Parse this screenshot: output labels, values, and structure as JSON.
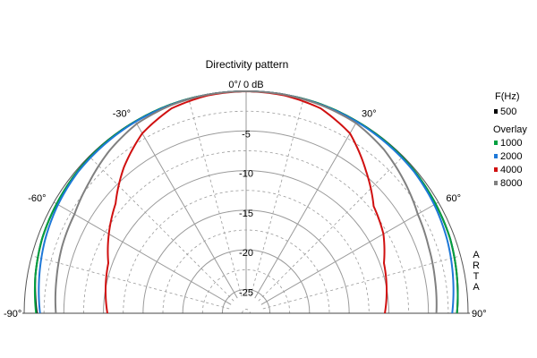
{
  "chart_data": {
    "type": "polar-half",
    "title": "Directivity pattern",
    "radial_unit_label": "0°/ 0 dB",
    "radial_labels": [
      "-5",
      "-10",
      "-15",
      "-20",
      "-25"
    ],
    "db_range": [
      -28,
      0
    ],
    "angle_range": [
      -90,
      90
    ],
    "angle_labels": [
      {
        "angle": -90,
        "text": "-90°"
      },
      {
        "angle": -60,
        "text": "-60°"
      },
      {
        "angle": -30,
        "text": "-30°"
      },
      {
        "angle": 30,
        "text": "30°"
      },
      {
        "angle": 60,
        "text": "60°"
      },
      {
        "angle": 90,
        "text": "90°"
      }
    ],
    "legend_title": "F(Hz)",
    "overlay_label": "Overlay",
    "watermark": "ARTA",
    "angles": [
      -90,
      -80,
      -70,
      -60,
      -50,
      -40,
      -30,
      -20,
      -10,
      0,
      10,
      20,
      30,
      40,
      50,
      60,
      70,
      80,
      90
    ],
    "series": [
      {
        "name": "500",
        "color": "#000000",
        "values": [
          -1.6,
          -1.0,
          -0.6,
          -0.4,
          -0.2,
          -0.1,
          -0.05,
          0,
          0,
          0,
          0,
          0,
          -0.05,
          -0.1,
          -0.2,
          -0.4,
          -0.6,
          -1.0,
          -1.4
        ]
      },
      {
        "name": "1000",
        "color": "#00a040",
        "values": [
          -1.5,
          -1.0,
          -0.6,
          -0.4,
          -0.2,
          -0.1,
          -0.05,
          0,
          0,
          0,
          0,
          0,
          -0.05,
          -0.1,
          -0.2,
          -0.4,
          -0.6,
          -1.0,
          -1.4
        ]
      },
      {
        "name": "2000",
        "color": "#1e78d8",
        "values": [
          -2.0,
          -1.5,
          -1.0,
          -0.6,
          -0.3,
          -0.2,
          -0.1,
          -0.05,
          0,
          0,
          0,
          -0.05,
          -0.1,
          -0.2,
          -0.3,
          -0.6,
          -1.0,
          -1.5,
          -2.0
        ]
      },
      {
        "name": "4000",
        "color": "#d01010",
        "values": [
          -10.5,
          -10.0,
          -9.5,
          -8.0,
          -6.5,
          -4.0,
          -1.8,
          -0.5,
          -0.1,
          0,
          -0.1,
          -0.5,
          -1.8,
          -4.5,
          -7.0,
          -8.0,
          -9.5,
          -10.0,
          -10.5
        ]
      },
      {
        "name": "8000",
        "color": "#808080",
        "values": [
          -4.0,
          -3.7,
          -3.3,
          -3.0,
          -2.2,
          -1.2,
          -0.4,
          -0.1,
          0,
          0,
          0,
          -0.1,
          -0.3,
          -1.0,
          -2.0,
          -3.0,
          -3.5,
          -3.8,
          -4.0
        ]
      }
    ]
  }
}
